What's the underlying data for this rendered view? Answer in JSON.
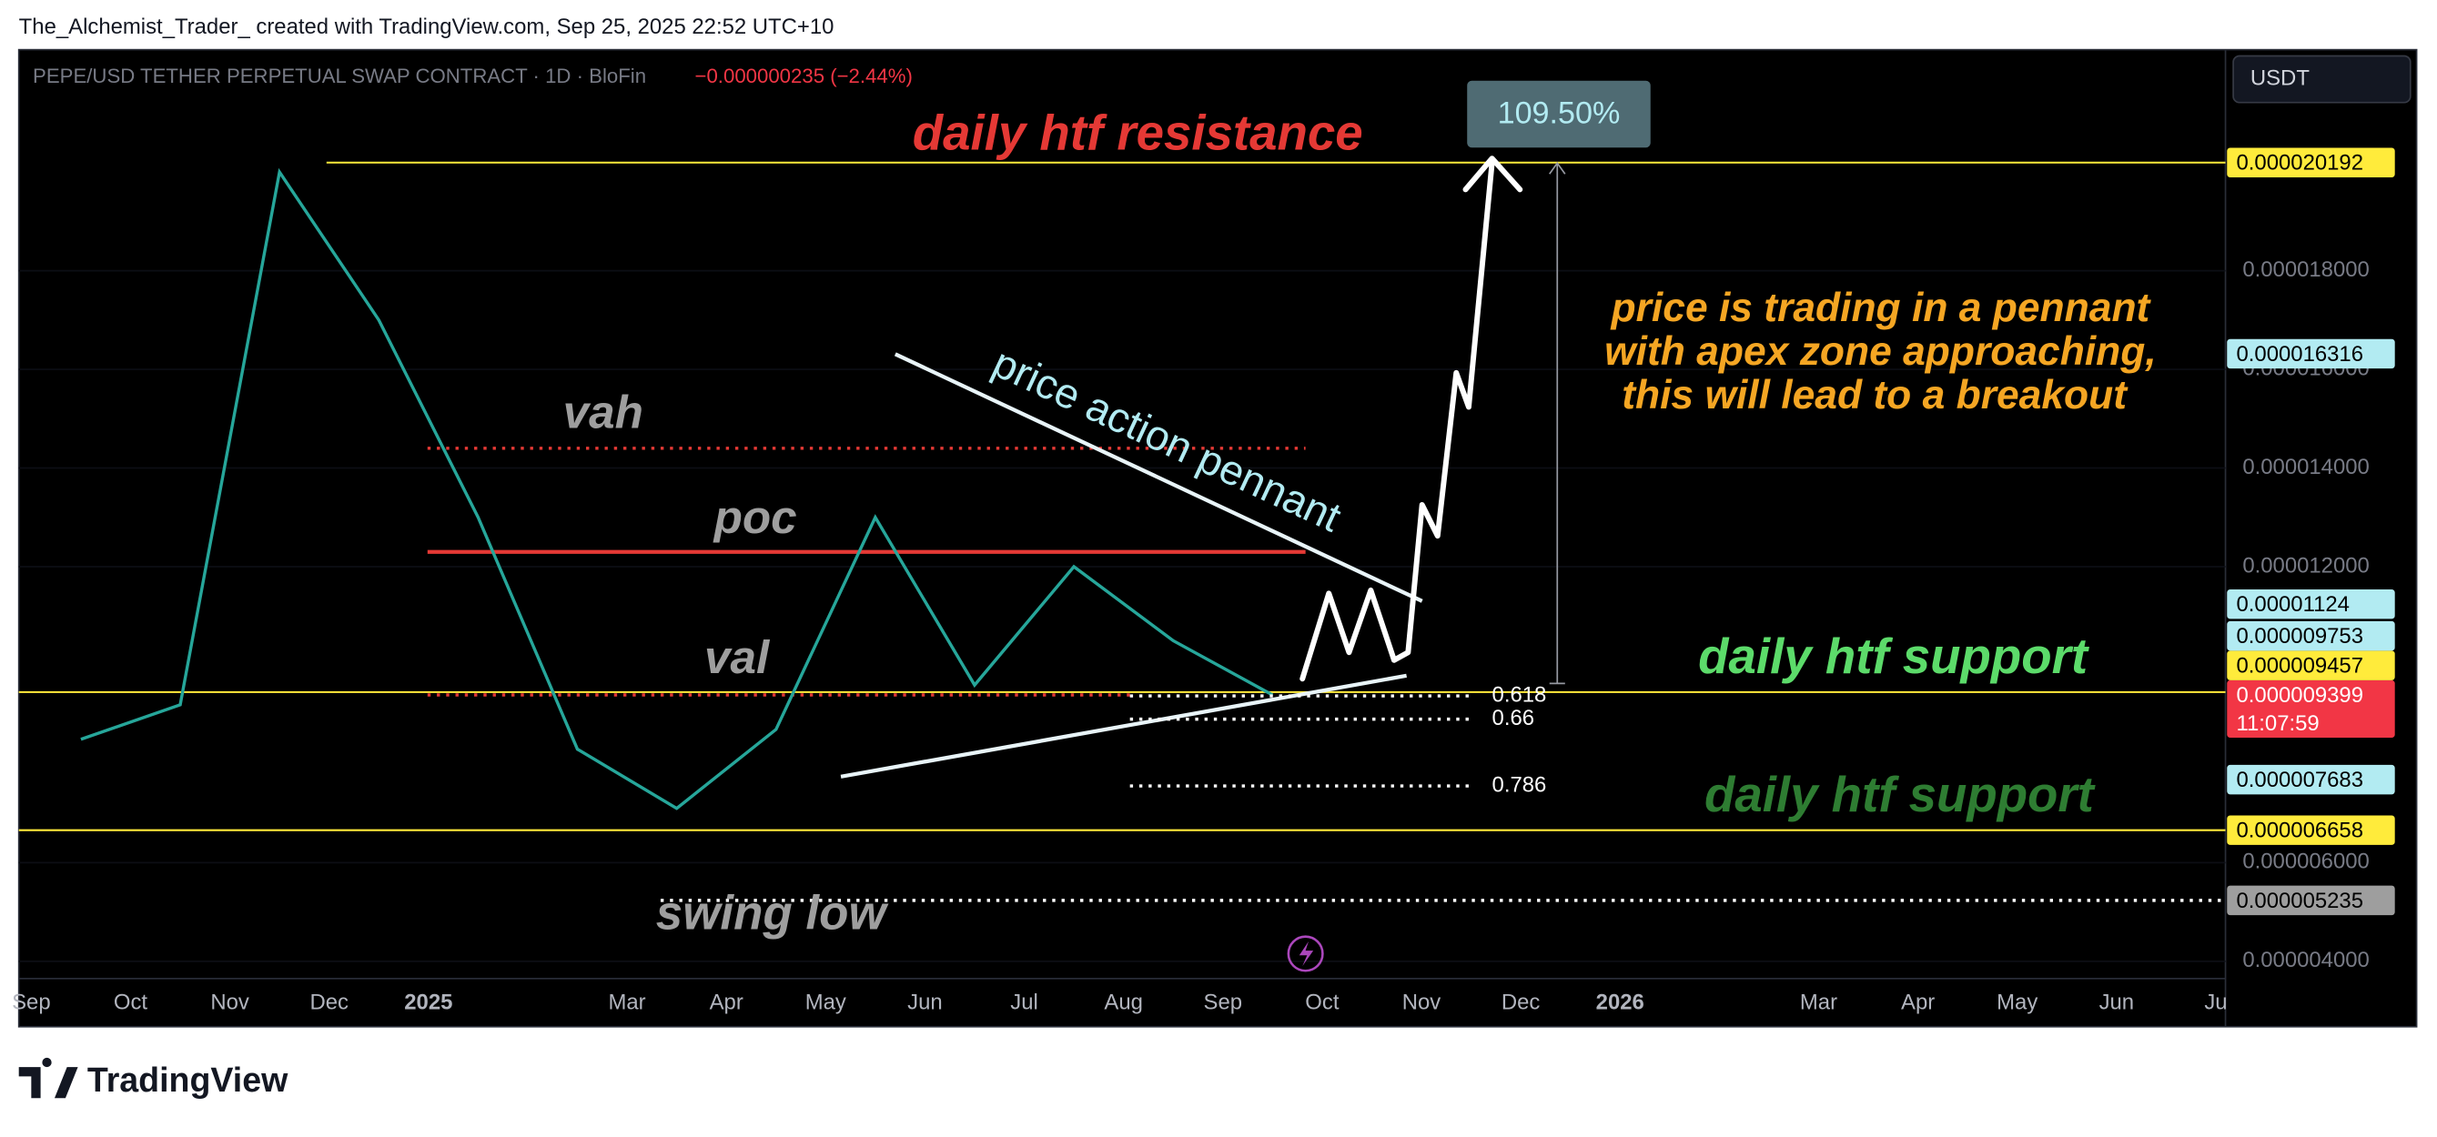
{
  "header": "The_Alchemist_Trader_ created with TradingView.com, Sep 25, 2025 22:52 UTC+10",
  "chart_data": {
    "type": "line",
    "title": "PEPE/USD TETHER PERPETUAL SWAP CONTRACT · 1D · BloFin",
    "change": "−0.000000235 (−2.44%)",
    "currency": "USDT",
    "color": "#26a69a",
    "categories": [
      "Sep",
      "Oct",
      "Nov",
      "Dec",
      "2025",
      null,
      "Mar",
      "Apr",
      "May",
      "Jun",
      "Jul",
      "Aug",
      "Sep",
      "Oct",
      "Nov",
      "Dec",
      "2026",
      null,
      "Mar",
      "Apr",
      "May",
      "Jun",
      "Ju"
    ],
    "values": [
      8.5e-06,
      9.2e-06,
      2e-05,
      1.7e-05,
      1.3e-05,
      8.3e-06,
      7.1e-06,
      8.7e-06,
      1.3e-05,
      9.6e-06,
      1.2e-05,
      1.05e-05,
      9.399e-06,
      null,
      null,
      null,
      null,
      null,
      null,
      null,
      null,
      null,
      null
    ],
    "ylim": [
      3.65e-06,
      2.248e-05
    ],
    "yticks": [
      {
        "value": 4e-06,
        "label": "0.000004000"
      },
      {
        "value": 6e-06,
        "label": "0.000006000"
      },
      {
        "value": 1.2e-05,
        "label": "0.000012000"
      },
      {
        "value": 1.4e-05,
        "label": "0.000014000"
      },
      {
        "value": 1.6e-05,
        "label": "0.000016000"
      },
      {
        "value": 1.8e-05,
        "label": "0.000018000"
      }
    ],
    "price_labels": [
      2.0192e-05,
      1.6316e-05,
      1.124e-05,
      9.753e-06,
      9.457e-06,
      9.399e-06,
      7.683e-06,
      6.658e-06,
      5.235e-06
    ],
    "price_label_colors": [
      "#ffeb3b",
      "#b2ebf2",
      "#b2ebf2",
      "#b2ebf2",
      "#ffeb3b",
      "#f23645",
      "#b2ebf2",
      "#ffeb3b",
      "#9e9e9e"
    ],
    "countdown": "11:07:59",
    "profile": [
      {
        "label": "vah",
        "value": 1.44e-05
      },
      {
        "label": "poc",
        "value": 1.23e-05
      },
      {
        "label": "val",
        "value": 9.4e-06
      }
    ],
    "annotations": {
      "resistance": "daily htf resistance",
      "pennant": "price action pennant",
      "note": [
        "price is trading in a pennant",
        "with apex zone approaching,",
        "this will lead to a breakout"
      ],
      "support": "daily htf support",
      "support_2": "daily htf support",
      "swing_low": "swing low"
    },
    "fib_levels": [
      0.618,
      0.66,
      0.786
    ],
    "target": {
      "value": 109.5,
      "label": "109.50%"
    }
  },
  "footer": {
    "logo": "TradingView"
  }
}
